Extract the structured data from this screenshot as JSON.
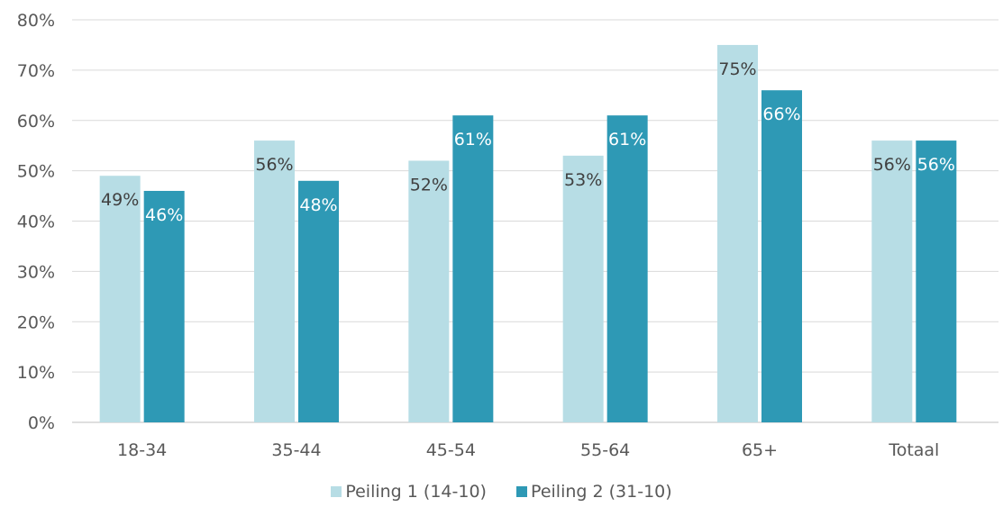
{
  "chart_data": {
    "type": "bar",
    "title": "",
    "xlabel": "",
    "ylabel": "",
    "categories": [
      "18-34",
      "35-44",
      "45-54",
      "55-64",
      "65+",
      "Totaal"
    ],
    "series": [
      {
        "name": "Peiling 1 (14-10)",
        "color": "#b7dde5",
        "label_color": "#404040",
        "values": [
          49,
          56,
          52,
          53,
          75,
          56
        ],
        "labels": [
          "49%",
          "56%",
          "52%",
          "53%",
          "75%",
          "56%"
        ]
      },
      {
        "name": "Peiling 2 (31-10)",
        "color": "#2e99b5",
        "label_color": "#ffffff",
        "values": [
          46,
          48,
          61,
          61,
          66,
          56
        ],
        "labels": [
          "46%",
          "48%",
          "61%",
          "61%",
          "66%",
          "56%"
        ]
      }
    ],
    "ylim": [
      0,
      80
    ],
    "yticks": [
      0,
      10,
      20,
      30,
      40,
      50,
      60,
      70,
      80
    ],
    "ytick_labels": [
      "0%",
      "10%",
      "20%",
      "30%",
      "40%",
      "50%",
      "60%",
      "70%",
      "80%"
    ],
    "grid": true,
    "legend_position": "bottom"
  }
}
